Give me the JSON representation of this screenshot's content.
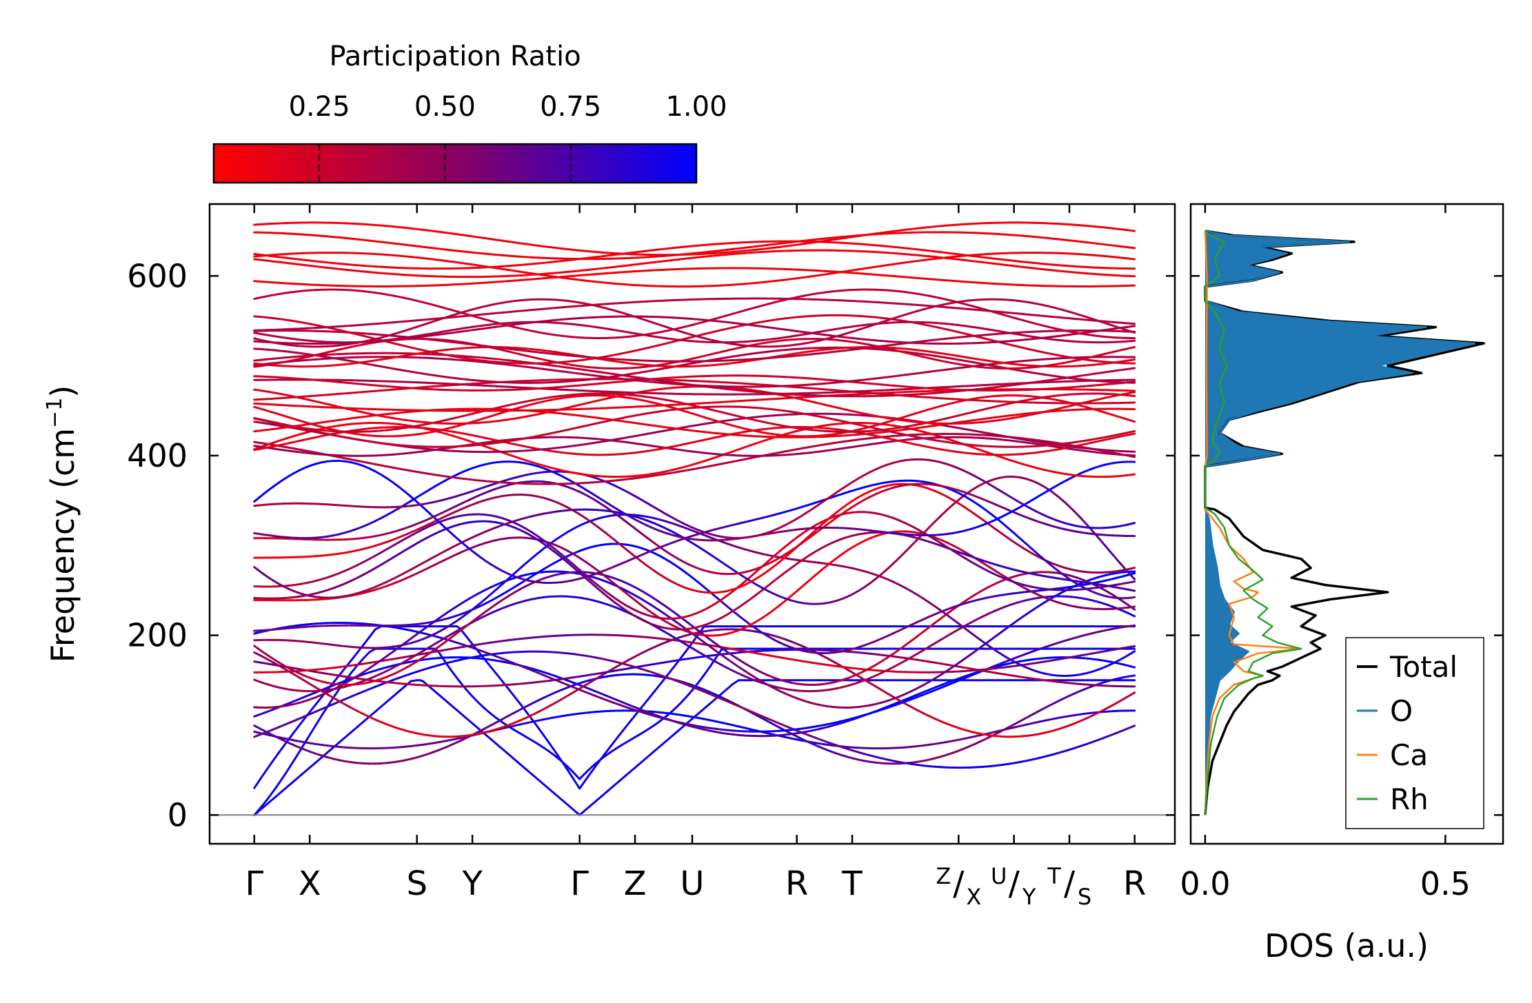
{
  "chart_data": [
    {
      "type": "line",
      "title": "",
      "xlabel": "",
      "ylabel": "Frequency (cm",
      "ylabel_sup": "−1",
      "ylabel_close": ")",
      "ylim": [
        -32,
        680
      ],
      "yticks": [
        0,
        200,
        400,
        600
      ],
      "path_labels": [
        "Γ",
        "X",
        "S",
        "Y",
        "Γ",
        "Z",
        "U",
        "R",
        "T",
        "R"
      ],
      "path_positions": [
        0,
        0.62,
        1.82,
        2.44,
        3.64,
        4.26,
        4.9,
        6.07,
        6.69,
        9.85
      ],
      "break_groups": [
        {
          "pos": 7.88,
          "top": "Z",
          "bottom": "X"
        },
        {
          "pos": 8.5,
          "top": "U",
          "bottom": "Y"
        },
        {
          "pos": 9.12,
          "top": "T",
          "bottom": "S"
        }
      ],
      "segments": [
        [
          0,
          0.62
        ],
        [
          0.62,
          1.82
        ],
        [
          1.82,
          2.44
        ],
        [
          2.44,
          3.64
        ],
        [
          3.64,
          4.26
        ],
        [
          4.26,
          4.9
        ],
        [
          4.9,
          6.07
        ],
        [
          6.07,
          6.69
        ],
        [
          6.69,
          7.88
        ],
        [
          7.88,
          8.5
        ],
        [
          8.5,
          9.12
        ],
        [
          9.12,
          9.85
        ]
      ],
      "xlim": [
        -0.5,
        10.3
      ],
      "colorbar": {
        "label": "Participation Ratio",
        "ticks": [
          0.25,
          0.5,
          0.75,
          1.0
        ],
        "tick_labels": [
          "0.25",
          "0.50",
          "0.75",
          "1.00"
        ],
        "range": [
          0.04,
          1.0
        ],
        "color_low": "#ff0000",
        "color_mid": "#8a0060",
        "color_high": "#0000ff"
      },
      "zero_line_color": "#808080"
    },
    {
      "type": "line",
      "xlabel": "DOS (a.u.)",
      "xlim": [
        -0.03,
        0.62
      ],
      "xticks": [
        0.0,
        0.5
      ],
      "xtick_labels": [
        "0.0",
        "0.5"
      ],
      "legend": {
        "placement": "lower-right",
        "entries": [
          "Total",
          "O",
          "Ca",
          "Rh"
        ]
      },
      "series": [
        {
          "name": "Total",
          "color": "#000000",
          "points": [
            [
              0,
              0
            ],
            [
              0.005,
              30
            ],
            [
              0.015,
              60
            ],
            [
              0.03,
              80
            ],
            [
              0.045,
              100
            ],
            [
              0.06,
              115
            ],
            [
              0.075,
              125
            ],
            [
              0.09,
              135
            ],
            [
              0.11,
              145
            ],
            [
              0.14,
              150
            ],
            [
              0.155,
              155
            ],
            [
              0.13,
              160
            ],
            [
              0.16,
              165
            ],
            [
              0.2,
              175
            ],
            [
              0.24,
              185
            ],
            [
              0.22,
              192
            ],
            [
              0.25,
              200
            ],
            [
              0.2,
              210
            ],
            [
              0.23,
              222
            ],
            [
              0.18,
              232
            ],
            [
              0.26,
              240
            ],
            [
              0.38,
              248
            ],
            [
              0.25,
              256
            ],
            [
              0.18,
              264
            ],
            [
              0.22,
              275
            ],
            [
              0.2,
              285
            ],
            [
              0.12,
              295
            ],
            [
              0.08,
              310
            ],
            [
              0.05,
              330
            ],
            [
              0.02,
              340
            ],
            [
              0,
              342
            ],
            [
              0,
              388
            ],
            [
              0.05,
              392
            ],
            [
              0.16,
              402
            ],
            [
              0.08,
              410
            ],
            [
              0.03,
              425
            ],
            [
              0.05,
              440
            ],
            [
              0.12,
              450
            ],
            [
              0.18,
              458
            ],
            [
              0.25,
              470
            ],
            [
              0.32,
              482
            ],
            [
              0.45,
              492
            ],
            [
              0.38,
              500
            ],
            [
              0.58,
              525
            ],
            [
              0.36,
              533
            ],
            [
              0.48,
              543
            ],
            [
              0.26,
              550
            ],
            [
              0.08,
              560
            ],
            [
              0,
              572
            ],
            [
              0,
              588
            ],
            [
              0.1,
              595
            ],
            [
              0.16,
              604
            ],
            [
              0.09,
              612
            ],
            [
              0.14,
              618
            ],
            [
              0.18,
              625
            ],
            [
              0.12,
              632
            ],
            [
              0.31,
              638
            ],
            [
              0.06,
              645
            ],
            [
              0,
              650
            ]
          ]
        },
        {
          "name": "O",
          "color": "#1f77b4",
          "points": [
            [
              0,
              0
            ],
            [
              0.003,
              40
            ],
            [
              0.006,
              80
            ],
            [
              0.01,
              110
            ],
            [
              0.02,
              130
            ],
            [
              0.03,
              150
            ],
            [
              0.05,
              160
            ],
            [
              0.07,
              172
            ],
            [
              0.09,
              182
            ],
            [
              0.05,
              192
            ],
            [
              0.07,
              202
            ],
            [
              0.05,
              212
            ],
            [
              0.06,
              226
            ],
            [
              0.04,
              240
            ],
            [
              0.03,
              255
            ],
            [
              0.025,
              275
            ],
            [
              0.015,
              300
            ],
            [
              0.008,
              330
            ],
            [
              0,
              340
            ],
            [
              0,
              388
            ],
            [
              0.05,
              392
            ],
            [
              0.155,
              402
            ],
            [
              0.07,
              410
            ],
            [
              0.03,
              425
            ],
            [
              0.05,
              440
            ],
            [
              0.11,
              450
            ],
            [
              0.17,
              458
            ],
            [
              0.24,
              470
            ],
            [
              0.31,
              482
            ],
            [
              0.43,
              492
            ],
            [
              0.36,
              500
            ],
            [
              0.56,
              525
            ],
            [
              0.34,
              533
            ],
            [
              0.46,
              543
            ],
            [
              0.24,
              550
            ],
            [
              0.07,
              560
            ],
            [
              0,
              572
            ],
            [
              0,
              588
            ],
            [
              0.1,
              595
            ],
            [
              0.155,
              604
            ],
            [
              0.085,
              612
            ],
            [
              0.13,
              618
            ],
            [
              0.17,
              625
            ],
            [
              0.11,
              632
            ],
            [
              0.3,
              638
            ],
            [
              0.05,
              645
            ],
            [
              0,
              650
            ]
          ]
        },
        {
          "name": "Ca",
          "color": "#ff7f0e",
          "points": [
            [
              0,
              0
            ],
            [
              0.003,
              40
            ],
            [
              0.008,
              80
            ],
            [
              0.015,
              110
            ],
            [
              0.03,
              130
            ],
            [
              0.06,
              145
            ],
            [
              0.1,
              152
            ],
            [
              0.12,
              155
            ],
            [
              0.08,
              160
            ],
            [
              0.06,
              170
            ],
            [
              0.11,
              180
            ],
            [
              0.2,
              185
            ],
            [
              0.06,
              190
            ],
            [
              0.05,
              200
            ],
            [
              0.06,
              220
            ],
            [
              0.05,
              235
            ],
            [
              0.1,
              243
            ],
            [
              0.11,
              248
            ],
            [
              0.08,
              252
            ],
            [
              0.06,
              260
            ],
            [
              0.1,
              270
            ],
            [
              0.08,
              285
            ],
            [
              0.05,
              300
            ],
            [
              0.03,
              320
            ],
            [
              0,
              340
            ],
            [
              0,
              388
            ],
            [
              0.004,
              400
            ],
            [
              0.003,
              500
            ],
            [
              0.004,
              600
            ],
            [
              0,
              650
            ]
          ]
        },
        {
          "name": "Rh",
          "color": "#2ca02c",
          "points": [
            [
              0,
              0
            ],
            [
              0.005,
              40
            ],
            [
              0.012,
              80
            ],
            [
              0.025,
              110
            ],
            [
              0.04,
              130
            ],
            [
              0.07,
              145
            ],
            [
              0.1,
              152
            ],
            [
              0.12,
              155
            ],
            [
              0.09,
              160
            ],
            [
              0.1,
              170
            ],
            [
              0.14,
              180
            ],
            [
              0.2,
              185
            ],
            [
              0.15,
              192
            ],
            [
              0.12,
              200
            ],
            [
              0.14,
              210
            ],
            [
              0.11,
              220
            ],
            [
              0.13,
              230
            ],
            [
              0.1,
              240
            ],
            [
              0.08,
              250
            ],
            [
              0.12,
              262
            ],
            [
              0.1,
              272
            ],
            [
              0.07,
              285
            ],
            [
              0.05,
              300
            ],
            [
              0.04,
              320
            ],
            [
              0.02,
              335
            ],
            [
              0,
              342
            ],
            [
              0,
              388
            ],
            [
              0.02,
              395
            ],
            [
              0.03,
              405
            ],
            [
              0.015,
              415
            ],
            [
              0.02,
              430
            ],
            [
              0.03,
              445
            ],
            [
              0.04,
              460
            ],
            [
              0.03,
              480
            ],
            [
              0.045,
              500
            ],
            [
              0.03,
              520
            ],
            [
              0.04,
              540
            ],
            [
              0.02,
              560
            ],
            [
              0,
              572
            ],
            [
              0,
              588
            ],
            [
              0.03,
              600
            ],
            [
              0.02,
              620
            ],
            [
              0.04,
              638
            ],
            [
              0.01,
              645
            ],
            [
              0,
              650
            ]
          ]
        }
      ]
    }
  ]
}
